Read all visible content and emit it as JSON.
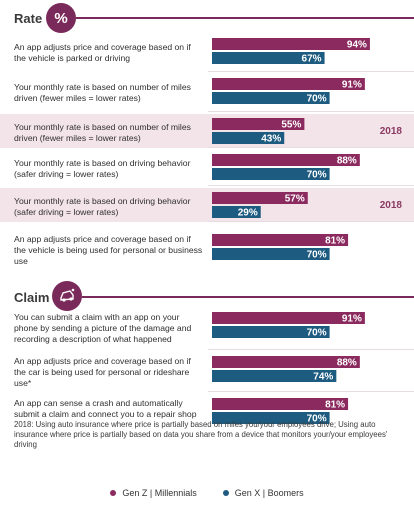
{
  "sections": [
    {
      "title": "Rate",
      "icon": "percent-icon",
      "icon_glyph": "%"
    },
    {
      "title": "Claim",
      "icon": "car-crash-icon",
      "icon_glyph": ""
    }
  ],
  "colors": {
    "genz": "#8b2a5e",
    "genx": "#1e5b80",
    "highlight": "#f3e4ea"
  },
  "chart_data": {
    "type": "bar",
    "orientation": "horizontal",
    "xlim": [
      0,
      100
    ],
    "series": [
      {
        "name": "Gen Z | Millennials"
      },
      {
        "name": "Gen X | Boomers"
      }
    ],
    "rows": [
      {
        "section": 0,
        "label": "An app adjusts price and coverage based on if the vehicle is parked or driving",
        "genz": 94,
        "genx": 67,
        "genz_label": "94%",
        "genx_label": "67%",
        "year": "",
        "highlight": false
      },
      {
        "section": 0,
        "label": "Your monthly rate is based on number of miles driven (fewer miles = lower rates)",
        "genz": 91,
        "genx": 70,
        "genz_label": "91%",
        "genx_label": "70%",
        "year": "",
        "highlight": false
      },
      {
        "section": 0,
        "label": "Your monthly rate is based on number of miles driven (fewer miles = lower rates)",
        "genz": 55,
        "genx": 43,
        "genz_label": "55%",
        "genx_label": "43%",
        "year": "2018",
        "highlight": true
      },
      {
        "section": 0,
        "label": "Your monthly rate is based on driving behavior (safer driving = lower rates)",
        "genz": 88,
        "genx": 70,
        "genz_label": "88%",
        "genx_label": "70%",
        "year": "",
        "highlight": false
      },
      {
        "section": 0,
        "label": "Your monthly rate is based on driving behavior (safer driving = lower rates)",
        "genz": 57,
        "genx": 29,
        "genz_label": "57%",
        "genx_label": "29%",
        "year": "2018",
        "highlight": true
      },
      {
        "section": 0,
        "label": "An app adjusts price and coverage based on if the vehicle is being used for personal or business use",
        "genz": 81,
        "genx": 70,
        "genz_label": "81%",
        "genx_label": "70%",
        "year": "",
        "highlight": false
      },
      {
        "section": 1,
        "label": "You can submit a claim with an app on your phone by sending a picture of the damage and recording a description of what happened",
        "genz": 91,
        "genx": 70,
        "genz_label": "91%",
        "genx_label": "70%",
        "year": "",
        "highlight": false
      },
      {
        "section": 1,
        "label": "An app adjusts price and coverage based on if the car is being used for personal or rideshare use*",
        "genz": 88,
        "genx": 74,
        "genz_label": "88%",
        "genx_label": "74%",
        "year": "",
        "highlight": false
      },
      {
        "section": 1,
        "label": "An app can sense a crash and automatically submit a claim and connect you to a repair shop",
        "genz": 81,
        "genx": 70,
        "genz_label": "81%",
        "genx_label": "70%",
        "year": "",
        "highlight": false
      }
    ]
  },
  "footnote": "2018: Using auto insurance where price is partially based on miles you/your employees drive; Using auto insurance where price is partially based on data you share from a device that monitors your/your employees' driving",
  "legend": [
    {
      "label": "Gen Z | Millennials",
      "color": "#8b2a5e"
    },
    {
      "label": "Gen X | Boomers",
      "color": "#1e5b80"
    }
  ]
}
